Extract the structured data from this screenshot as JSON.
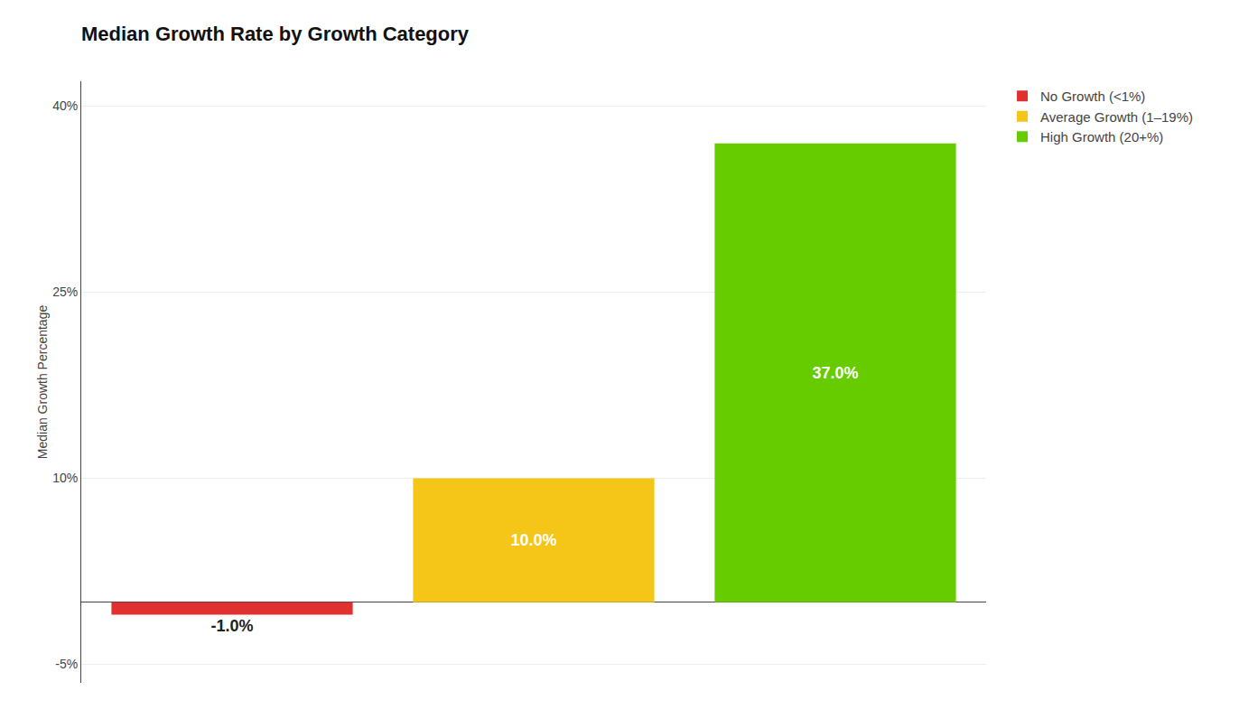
{
  "chart_data": {
    "type": "bar",
    "title": "Median Growth Rate by Growth Category",
    "categories": [
      "No Growth (<1%)",
      "Average Growth (1–19%)",
      "High Growth (20+%)"
    ],
    "values": [
      -1.0,
      10.0,
      37.0
    ],
    "value_labels": [
      "-1.0%",
      "10.0%",
      "37.0%"
    ],
    "colors": [
      "#e03030",
      "#f5c518",
      "#66cc00"
    ],
    "ylabel": "Median Growth Percentage",
    "ylim": [
      -6.5,
      42
    ],
    "yticks": [
      {
        "value": -5,
        "label": "-5%"
      },
      {
        "value": 10,
        "label": "10%"
      },
      {
        "value": 25,
        "label": "25%"
      },
      {
        "value": 40,
        "label": "40%"
      }
    ],
    "grid": true,
    "legend": "right",
    "data_labels": true,
    "tick_labels": "y"
  }
}
